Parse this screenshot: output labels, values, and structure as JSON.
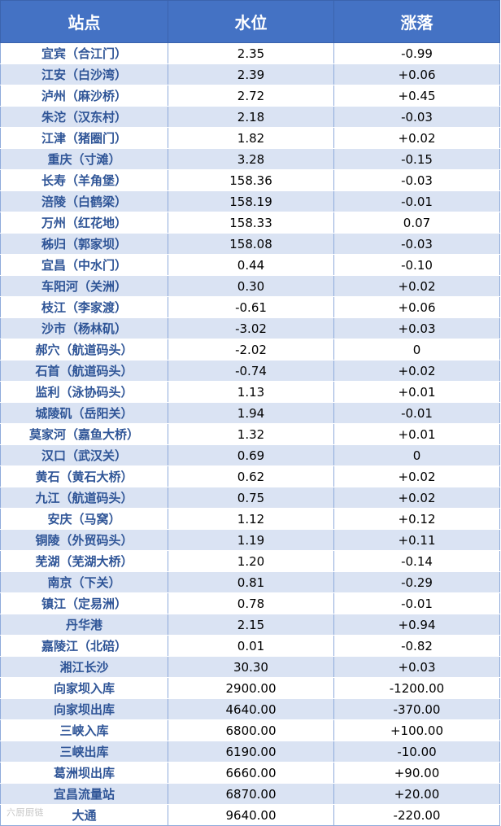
{
  "table": {
    "headers": [
      "站点",
      "水位",
      "涨落"
    ],
    "rows": [
      [
        "宜宾（合江门）",
        "2.35",
        "-0.99"
      ],
      [
        "江安（白沙湾）",
        "2.39",
        "+0.06"
      ],
      [
        "泸州（麻沙桥）",
        "2.72",
        "+0.45"
      ],
      [
        "朱沱（汉东村）",
        "2.18",
        "-0.03"
      ],
      [
        "江津（猪圈门）",
        "1.82",
        "+0.02"
      ],
      [
        "重庆（寸滩）",
        "3.28",
        "-0.15"
      ],
      [
        "长寿（羊角堡）",
        "158.36",
        "-0.03"
      ],
      [
        "涪陵（白鹤梁）",
        "158.19",
        "-0.01"
      ],
      [
        "万州（红花地）",
        "158.33",
        "0.07"
      ],
      [
        "秭归（郭家坝）",
        "158.08",
        "-0.03"
      ],
      [
        "宜昌（中水门）",
        "0.44",
        "-0.10"
      ],
      [
        "车阳河（关洲）",
        "0.30",
        "+0.02"
      ],
      [
        "枝江（李家渡）",
        "-0.61",
        "+0.06"
      ],
      [
        "沙市（杨林矶）",
        "-3.02",
        "+0.03"
      ],
      [
        "郝穴（航道码头）",
        "-2.02",
        "0"
      ],
      [
        "石首（航道码头）",
        "-0.74",
        "+0.02"
      ],
      [
        "监利（泳协码头）",
        "1.13",
        "+0.01"
      ],
      [
        "城陵矶（岳阳关）",
        "1.94",
        "-0.01"
      ],
      [
        "莫家河（嘉鱼大桥）",
        "1.32",
        "+0.01"
      ],
      [
        "汉口（武汉关）",
        "0.69",
        "0"
      ],
      [
        "黄石（黄石大桥）",
        "0.62",
        "+0.02"
      ],
      [
        "九江（航道码头）",
        "0.75",
        "+0.02"
      ],
      [
        "安庆（马窝）",
        "1.12",
        "+0.12"
      ],
      [
        "铜陵（外贸码头）",
        "1.19",
        "+0.11"
      ],
      [
        "芜湖（芜湖大桥）",
        "1.20",
        "-0.14"
      ],
      [
        "南京（下关）",
        "0.81",
        "-0.29"
      ],
      [
        "镇江（定易洲）",
        "0.78",
        "-0.01"
      ],
      [
        "丹华港",
        "2.15",
        "+0.94"
      ],
      [
        "嘉陵江（北碚）",
        "0.01",
        "-0.82"
      ],
      [
        "湘江长沙",
        "30.30",
        "+0.03"
      ],
      [
        "向家坝入库",
        "2900.00",
        "-1200.00"
      ],
      [
        "向家坝出库",
        "4640.00",
        "-370.00"
      ],
      [
        "三峡入库",
        "6800.00",
        "+100.00"
      ],
      [
        "三峡出库",
        "6190.00",
        "-10.00"
      ],
      [
        "葛洲坝出库",
        "6660.00",
        "+90.00"
      ],
      [
        "宜昌流量站",
        "6870.00",
        "+20.00"
      ],
      [
        "大通",
        "9640.00",
        "-220.00"
      ]
    ]
  },
  "watermark": "六厨厨链",
  "colors": {
    "header_bg": "#4472c4",
    "header_text": "#ffffff",
    "stripe": "#dae3f3",
    "station_text": "#2f5597"
  }
}
